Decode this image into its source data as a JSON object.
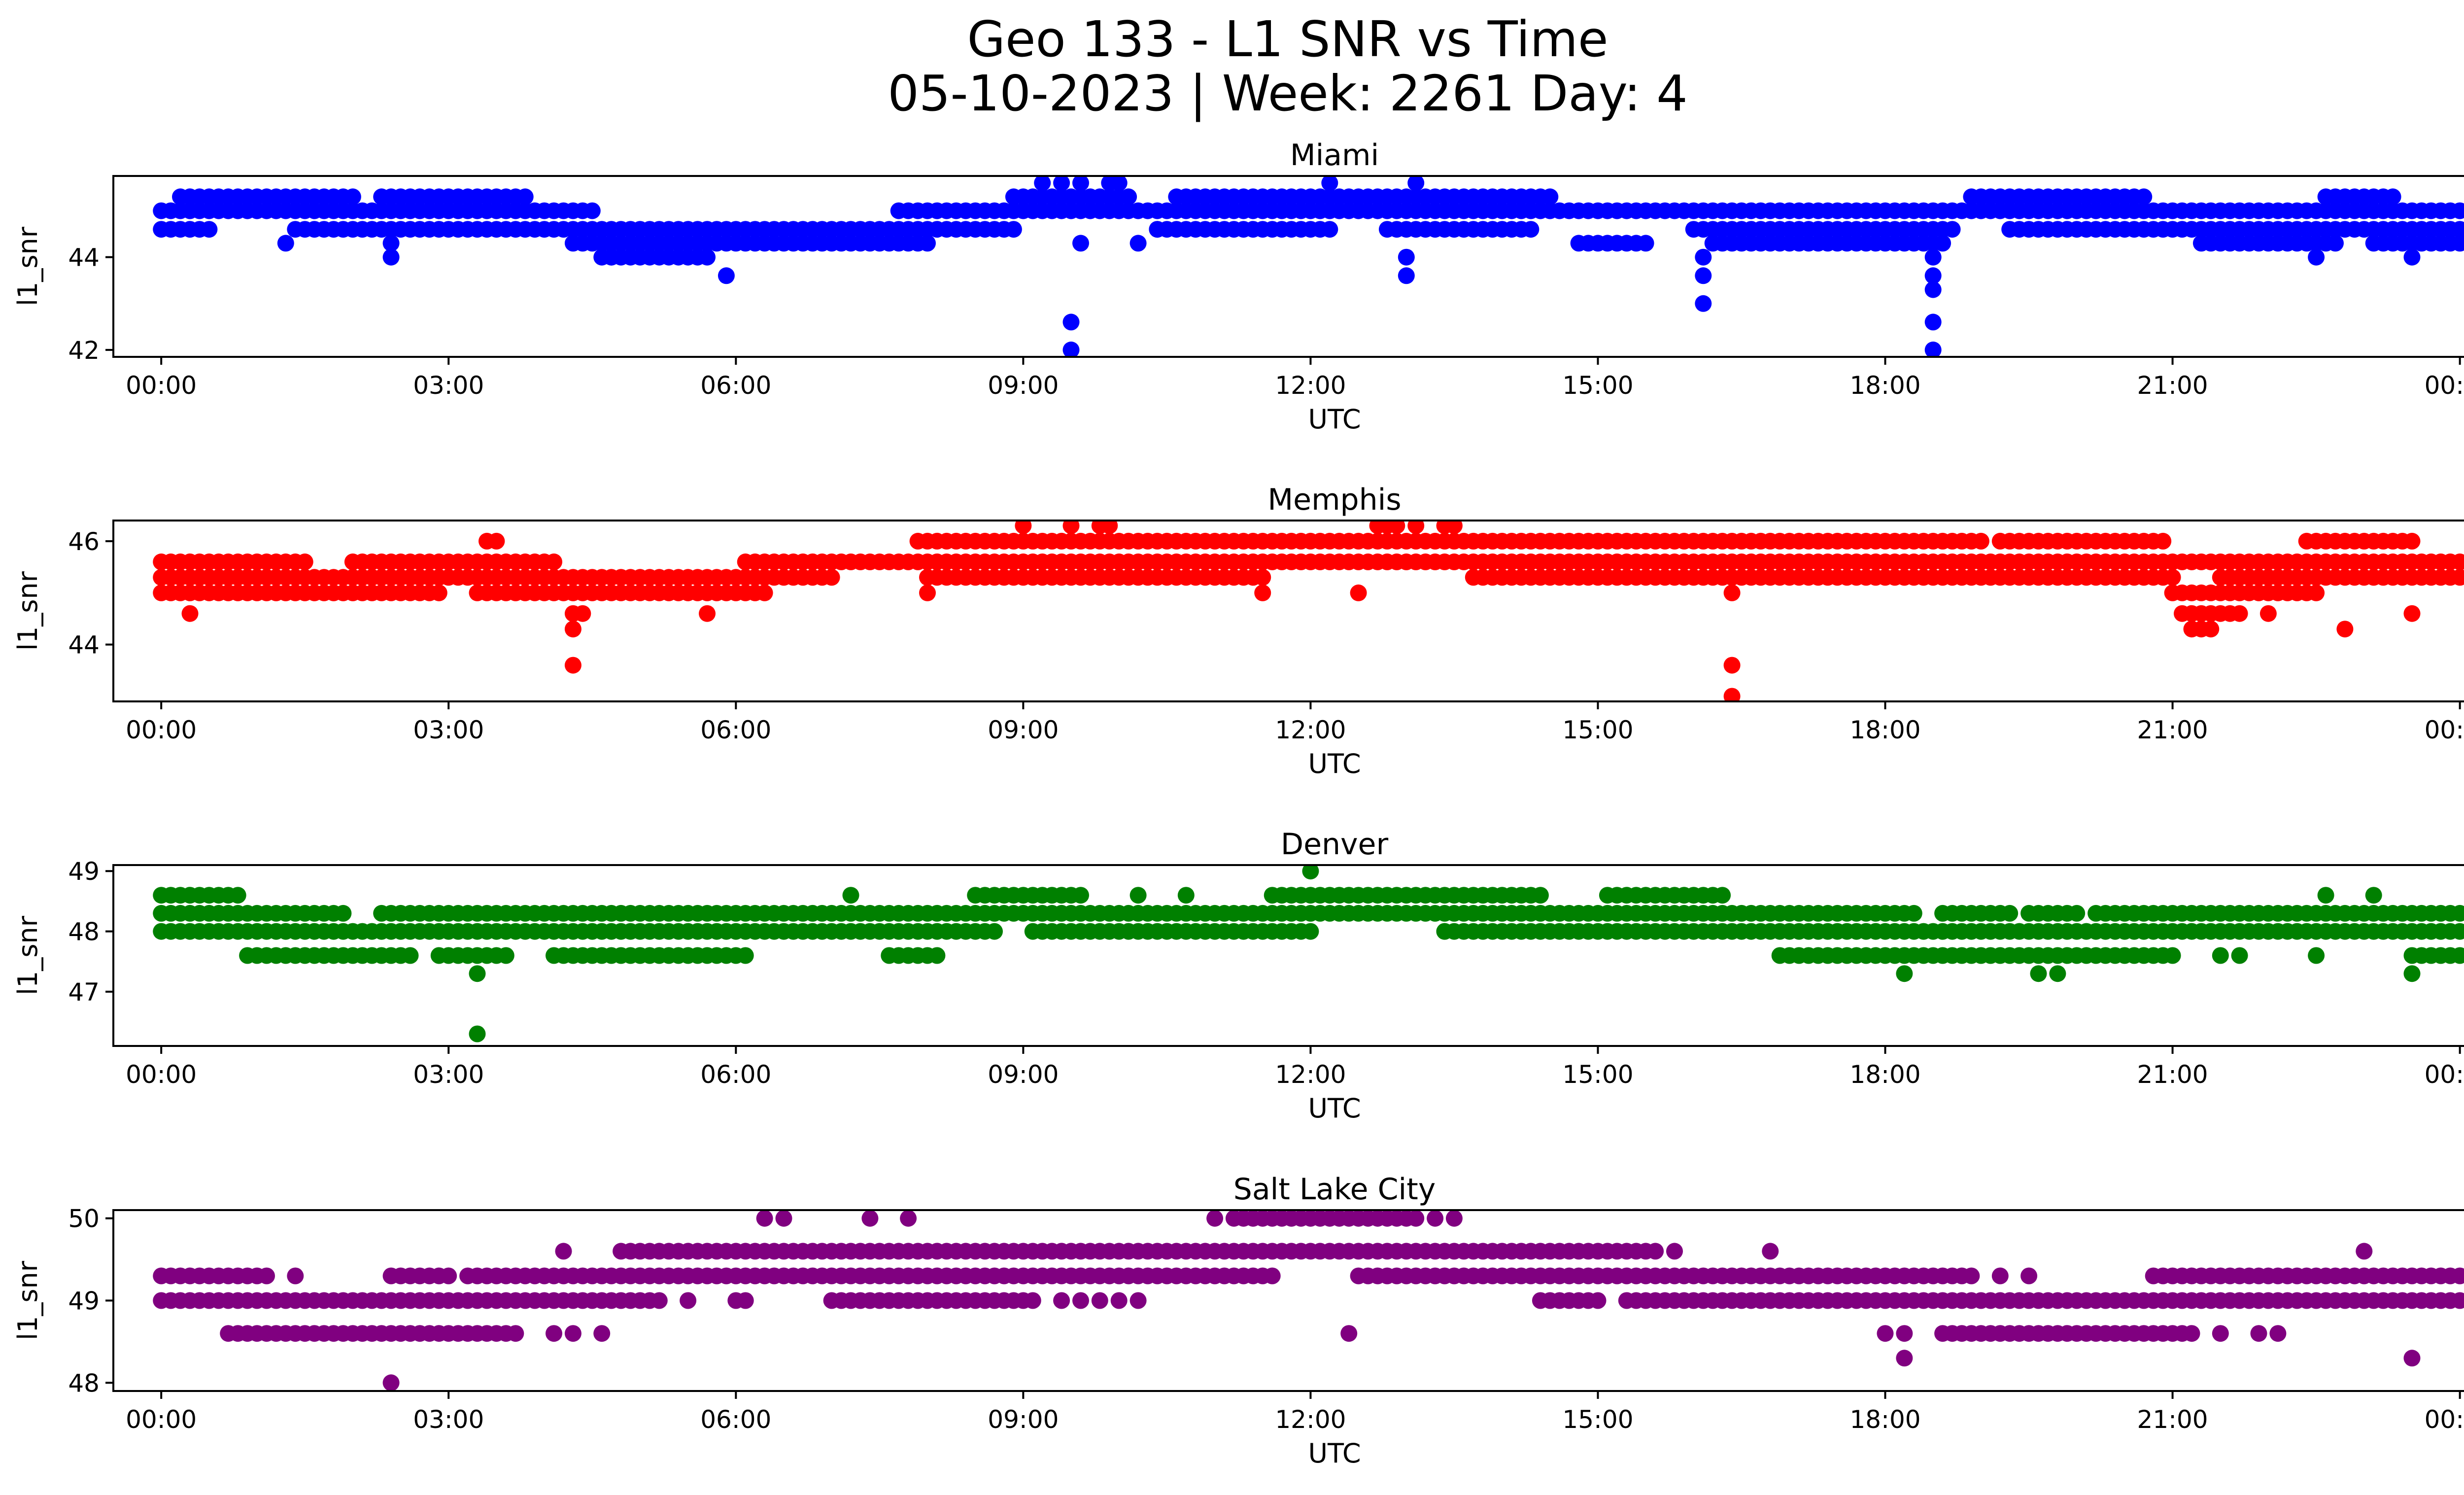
{
  "figure": {
    "title_line1": "Geo 133 - L1 SNR vs Time",
    "title_line2": "05-10-2023 | Week: 2261 Day: 4"
  },
  "chart_data": [
    {
      "type": "scatter",
      "title": "Miami",
      "xlabel": "UTC",
      "ylabel": "l1_snr",
      "color": "#0000ff",
      "xlim": [
        -0.5,
        25.0
      ],
      "ylim": [
        41.85,
        45.75
      ],
      "x_ticks": [
        "00:00",
        "03:00",
        "06:00",
        "09:00",
        "12:00",
        "15:00",
        "18:00",
        "21:00",
        "00:00"
      ],
      "y_ticks": [
        42,
        44
      ],
      "levels": [
        {
          "y": 45.3,
          "x_ranges": [
            [
              0.2,
              2.0
            ],
            [
              2.3,
              3.8
            ],
            [
              8.9,
              10.1
            ],
            [
              10.6,
              14.5
            ],
            [
              18.9,
              20.7
            ],
            [
              22.6,
              23.3
            ]
          ]
        },
        {
          "y": 45.0,
          "x_ranges": [
            [
              0.0,
              4.5
            ],
            [
              7.7,
              24.0
            ]
          ]
        },
        {
          "y": 44.6,
          "x_ranges": [
            [
              0.0,
              0.5
            ],
            [
              1.4,
              8.9
            ],
            [
              10.4,
              12.2
            ],
            [
              12.8,
              14.3
            ],
            [
              16.0,
              18.7
            ],
            [
              19.3,
              24.0
            ]
          ]
        },
        {
          "y": 44.3,
          "x_ranges": [
            [
              4.3,
              8.0
            ],
            [
              14.8,
              15.5
            ],
            [
              16.2,
              18.6
            ],
            [
              21.3,
              22.7
            ],
            [
              23.1,
              24.0
            ]
          ]
        },
        {
          "y": 44.0,
          "x_ranges": [
            [
              4.6,
              5.6
            ]
          ]
        }
      ],
      "extra_points": [
        [
          1.3,
          44.3
        ],
        [
          2.4,
          44.3
        ],
        [
          2.4,
          44.0
        ],
        [
          4.7,
          44.0
        ],
        [
          5.7,
          44.0
        ],
        [
          5.9,
          43.6
        ],
        [
          9.2,
          45.6
        ],
        [
          9.4,
          45.6
        ],
        [
          9.6,
          45.6
        ],
        [
          9.9,
          45.6
        ],
        [
          10.0,
          45.6
        ],
        [
          9.5,
          42.6
        ],
        [
          9.5,
          42.0
        ],
        [
          9.6,
          44.3
        ],
        [
          10.4,
          44.6
        ],
        [
          10.2,
          44.3
        ],
        [
          12.2,
          45.6
        ],
        [
          13.1,
          45.6
        ],
        [
          13.0,
          44.0
        ],
        [
          13.0,
          43.6
        ],
        [
          16.1,
          44.0
        ],
        [
          16.1,
          43.6
        ],
        [
          16.1,
          43.0
        ],
        [
          18.5,
          44.0
        ],
        [
          18.5,
          43.6
        ],
        [
          18.5,
          43.3
        ],
        [
          18.5,
          42.6
        ],
        [
          18.5,
          42.0
        ],
        [
          22.5,
          44.0
        ],
        [
          23.5,
          44.0
        ]
      ]
    },
    {
      "type": "scatter",
      "title": "Memphis",
      "xlabel": "UTC",
      "ylabel": "l1_snr",
      "color": "#ff0000",
      "xlim": [
        -0.5,
        25.0
      ],
      "ylim": [
        42.9,
        46.4
      ],
      "x_ticks": [
        "00:00",
        "03:00",
        "06:00",
        "09:00",
        "12:00",
        "15:00",
        "18:00",
        "21:00",
        "00:00"
      ],
      "y_ticks": [
        44,
        46
      ],
      "levels": [
        {
          "y": 46.0,
          "x_ranges": [
            [
              7.9,
              19.0
            ],
            [
              19.2,
              20.9
            ],
            [
              22.4,
              23.5
            ]
          ]
        },
        {
          "y": 45.6,
          "x_ranges": [
            [
              0.0,
              1.5
            ],
            [
              2.0,
              4.1
            ],
            [
              6.1,
              24.0
            ]
          ]
        },
        {
          "y": 45.3,
          "x_ranges": [
            [
              0.0,
              7.0
            ],
            [
              8.0,
              11.5
            ],
            [
              13.7,
              21.0
            ],
            [
              21.5,
              24.0
            ]
          ]
        },
        {
          "y": 45.0,
          "x_ranges": [
            [
              0.0,
              2.9
            ],
            [
              3.3,
              6.3
            ],
            [
              21.0,
              22.5
            ]
          ]
        },
        {
          "y": 44.6,
          "x_ranges": [
            [
              21.1,
              21.7
            ]
          ]
        },
        {
          "y": 44.3,
          "x_ranges": [
            [
              21.2,
              21.4
            ]
          ]
        }
      ],
      "extra_points": [
        [
          3.4,
          46.0
        ],
        [
          3.5,
          46.0
        ],
        [
          0.3,
          44.6
        ],
        [
          4.3,
          44.6
        ],
        [
          4.3,
          44.3
        ],
        [
          4.3,
          43.6
        ],
        [
          4.4,
          44.6
        ],
        [
          5.7,
          44.6
        ],
        [
          9.0,
          46.3
        ],
        [
          9.5,
          46.3
        ],
        [
          9.8,
          46.3
        ],
        [
          9.9,
          46.3
        ],
        [
          12.7,
          46.3
        ],
        [
          12.8,
          46.3
        ],
        [
          12.9,
          46.3
        ],
        [
          13.1,
          46.3
        ],
        [
          13.4,
          46.3
        ],
        [
          13.5,
          46.3
        ],
        [
          8.0,
          45.0
        ],
        [
          11.5,
          45.0
        ],
        [
          12.5,
          45.0
        ],
        [
          16.4,
          45.0
        ],
        [
          16.4,
          43.6
        ],
        [
          16.4,
          43.0
        ],
        [
          22.0,
          44.6
        ],
        [
          22.8,
          44.3
        ],
        [
          23.5,
          44.6
        ]
      ]
    },
    {
      "type": "scatter",
      "title": "Denver",
      "xlabel": "UTC",
      "ylabel": "l1_snr",
      "color": "#008000",
      "xlim": [
        -0.5,
        25.0
      ],
      "ylim": [
        46.1,
        49.1
      ],
      "x_ticks": [
        "00:00",
        "03:00",
        "06:00",
        "09:00",
        "12:00",
        "15:00",
        "18:00",
        "21:00",
        "00:00"
      ],
      "y_ticks": [
        47,
        48,
        49
      ],
      "levels": [
        {
          "y": 48.6,
          "x_ranges": [
            [
              0.0,
              0.8
            ],
            [
              8.5,
              9.6
            ],
            [
              11.6,
              14.4
            ],
            [
              15.1,
              16.3
            ]
          ]
        },
        {
          "y": 48.3,
          "x_ranges": [
            [
              0.0,
              1.9
            ],
            [
              2.3,
              3.5
            ],
            [
              3.6,
              18.3
            ],
            [
              18.6,
              19.3
            ],
            [
              19.5,
              20.0
            ],
            [
              20.2,
              20.9
            ],
            [
              21.0,
              24.0
            ]
          ]
        },
        {
          "y": 48.0,
          "x_ranges": [
            [
              0.0,
              8.7
            ],
            [
              9.1,
              12.0
            ],
            [
              13.4,
              24.0
            ]
          ]
        },
        {
          "y": 47.6,
          "x_ranges": [
            [
              0.9,
              2.6
            ],
            [
              2.9,
              3.6
            ],
            [
              4.1,
              6.1
            ],
            [
              7.6,
              8.1
            ],
            [
              16.9,
              21.0
            ],
            [
              23.5,
              24.0
            ]
          ]
        }
      ],
      "extra_points": [
        [
          3.3,
          47.3
        ],
        [
          3.3,
          46.3
        ],
        [
          7.2,
          48.6
        ],
        [
          10.2,
          48.6
        ],
        [
          10.7,
          48.6
        ],
        [
          12.0,
          49.0
        ],
        [
          13.4,
          48.0
        ],
        [
          18.2,
          47.3
        ],
        [
          19.6,
          47.3
        ],
        [
          19.8,
          47.3
        ],
        [
          21.5,
          47.6
        ],
        [
          21.7,
          47.6
        ],
        [
          22.5,
          47.6
        ],
        [
          22.6,
          48.6
        ],
        [
          23.1,
          48.6
        ],
        [
          23.5,
          47.3
        ]
      ]
    },
    {
      "type": "scatter",
      "title": "Salt Lake City",
      "xlabel": "UTC",
      "ylabel": "l1_snr",
      "color": "#800080",
      "xlim": [
        -0.5,
        25.0
      ],
      "ylim": [
        47.9,
        50.1
      ],
      "x_ticks": [
        "00:00",
        "03:00",
        "06:00",
        "09:00",
        "12:00",
        "15:00",
        "18:00",
        "21:00",
        "00:00"
      ],
      "y_ticks": [
        48,
        49,
        50
      ],
      "levels": [
        {
          "y": 50.0,
          "x_ranges": [
            [
              11.3,
              13.1
            ]
          ]
        },
        {
          "y": 49.6,
          "x_ranges": [
            [
              4.8,
              15.6
            ]
          ]
        },
        {
          "y": 49.3,
          "x_ranges": [
            [
              0.0,
              1.0
            ],
            [
              2.4,
              3.0
            ],
            [
              3.2,
              11.6
            ],
            [
              12.5,
              18.9
            ],
            [
              20.8,
              24.0
            ]
          ]
        },
        {
          "y": 49.0,
          "x_ranges": [
            [
              0.0,
              5.2
            ],
            [
              7.0,
              9.1
            ],
            [
              14.4,
              15.0
            ],
            [
              15.3,
              24.0
            ]
          ]
        },
        {
          "y": 48.6,
          "x_ranges": [
            [
              0.7,
              3.7
            ],
            [
              18.6,
              21.2
            ]
          ]
        }
      ],
      "extra_points": [
        [
          1.1,
          49.3
        ],
        [
          1.4,
          49.3
        ],
        [
          2.4,
          48.0
        ],
        [
          4.2,
          49.6
        ],
        [
          4.1,
          48.6
        ],
        [
          4.3,
          48.6
        ],
        [
          4.6,
          48.6
        ],
        [
          5.5,
          49.0
        ],
        [
          6.0,
          49.0
        ],
        [
          6.1,
          49.0
        ],
        [
          6.3,
          50.0
        ],
        [
          6.5,
          50.0
        ],
        [
          7.4,
          50.0
        ],
        [
          7.8,
          50.0
        ],
        [
          9.4,
          49.0
        ],
        [
          9.6,
          49.0
        ],
        [
          9.8,
          49.0
        ],
        [
          10.0,
          49.0
        ],
        [
          10.2,
          49.0
        ],
        [
          11.0,
          50.0
        ],
        [
          11.2,
          50.0
        ],
        [
          13.3,
          50.0
        ],
        [
          13.5,
          50.0
        ],
        [
          12.4,
          48.6
        ],
        [
          15.8,
          49.6
        ],
        [
          16.8,
          49.6
        ],
        [
          18.0,
          48.6
        ],
        [
          18.2,
          48.6
        ],
        [
          18.2,
          48.3
        ],
        [
          19.2,
          49.3
        ],
        [
          19.5,
          49.3
        ],
        [
          21.5,
          48.6
        ],
        [
          21.9,
          48.6
        ],
        [
          22.1,
          48.6
        ],
        [
          23.0,
          49.6
        ],
        [
          23.5,
          48.3
        ]
      ]
    }
  ]
}
